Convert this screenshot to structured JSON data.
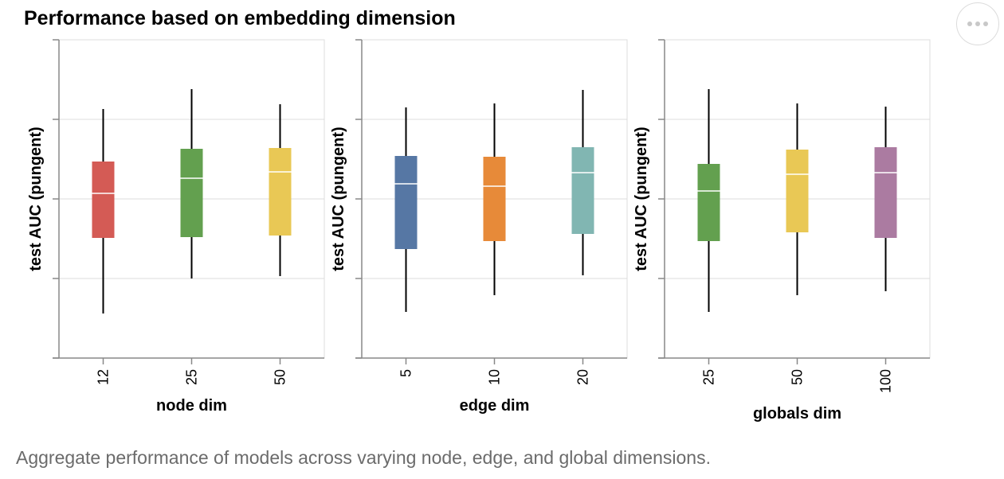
{
  "chart_data": {
    "type": "boxplot",
    "title": "Performance based on embedding dimension",
    "ylabel": "test AUC (pungent)",
    "y_tick_count": 4,
    "panels": [
      {
        "xlabel": "node dim",
        "categories": [
          "12",
          "25",
          "50"
        ],
        "colors": [
          "#d45b55",
          "#63a04f",
          "#e9c855"
        ],
        "boxes": [
          {
            "min": 0.56,
            "q1": 1.51,
            "median": 2.07,
            "q3": 2.47,
            "max": 3.13
          },
          {
            "min": 1.0,
            "q1": 1.52,
            "median": 2.26,
            "q3": 2.63,
            "max": 3.38
          },
          {
            "min": 1.03,
            "q1": 1.54,
            "median": 2.34,
            "q3": 2.64,
            "max": 3.19
          }
        ]
      },
      {
        "xlabel": "edge dim",
        "categories": [
          "5",
          "10",
          "20"
        ],
        "colors": [
          "#5677a4",
          "#e78a39",
          "#81b6b2"
        ],
        "boxes": [
          {
            "min": 0.58,
            "q1": 1.37,
            "median": 2.19,
            "q3": 2.54,
            "max": 3.15
          },
          {
            "min": 0.79,
            "q1": 1.47,
            "median": 2.16,
            "q3": 2.53,
            "max": 3.2
          },
          {
            "min": 1.04,
            "q1": 1.56,
            "median": 2.33,
            "q3": 2.65,
            "max": 3.37
          }
        ]
      },
      {
        "xlabel": "globals dim",
        "categories": [
          "25",
          "50",
          "100"
        ],
        "colors": [
          "#63a04f",
          "#e9c855",
          "#ab7ba1"
        ],
        "boxes": [
          {
            "min": 0.58,
            "q1": 1.47,
            "median": 2.1,
            "q3": 2.44,
            "max": 3.38
          },
          {
            "min": 0.79,
            "q1": 1.58,
            "median": 2.31,
            "q3": 2.62,
            "max": 3.2
          },
          {
            "min": 0.84,
            "q1": 1.51,
            "median": 2.33,
            "q3": 2.65,
            "max": 3.16
          }
        ]
      }
    ]
  },
  "caption": "Aggregate performance of models across varying node, edge, and global dimensions.",
  "menu": {
    "icon": "more-options-icon"
  }
}
